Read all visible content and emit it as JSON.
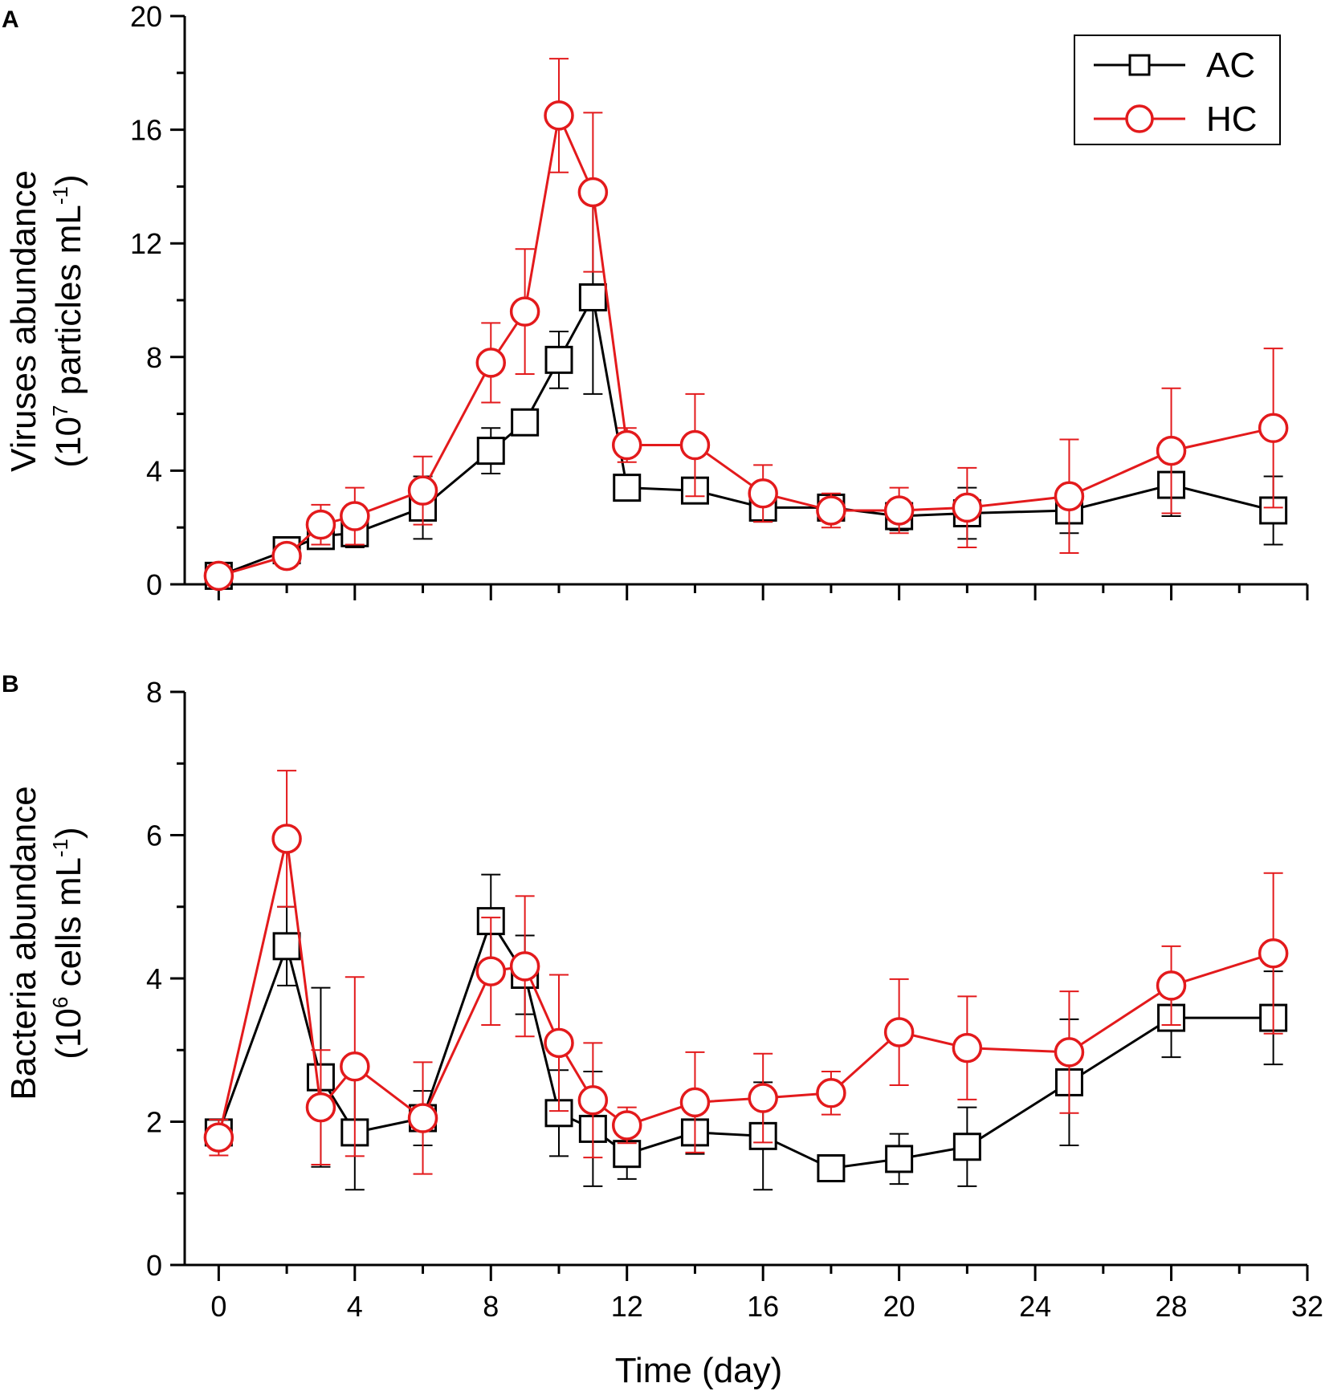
{
  "chart_data": [
    {
      "panel": "A",
      "type": "line",
      "ylabel_line1": "Viruses abundance",
      "ylabel_line2": "(10",
      "ylabel_sup": "7",
      "ylabel_mid": " particles mL",
      "ylabel_sup2": "-1",
      "ylabel_end": ")",
      "ylim": [
        0,
        20
      ],
      "yticks": [
        0,
        4,
        8,
        12,
        16,
        20
      ],
      "xlim": [
        -1,
        32
      ],
      "series": [
        {
          "name": "AC",
          "color": "#000000",
          "marker": "square",
          "x": [
            0,
            2,
            3,
            4,
            6,
            8,
            9,
            10,
            11,
            12,
            14,
            16,
            18,
            20,
            22,
            25,
            28,
            31
          ],
          "y": [
            0.3,
            1.2,
            1.7,
            1.8,
            2.7,
            4.7,
            5.7,
            7.9,
            10.1,
            3.4,
            3.3,
            2.7,
            2.7,
            2.4,
            2.5,
            2.6,
            3.5,
            2.6
          ],
          "err": [
            0.1,
            0.2,
            0.3,
            0.5,
            1.1,
            0.8,
            0.2,
            1.0,
            3.4,
            0.2,
            0.2,
            0.5,
            0.3,
            0.5,
            0.9,
            0.8,
            1.1,
            1.2
          ]
        },
        {
          "name": "HC",
          "color": "#e31a1c",
          "marker": "circle",
          "x": [
            0,
            2,
            3,
            4,
            6,
            8,
            9,
            10,
            11,
            12,
            14,
            16,
            18,
            20,
            22,
            25,
            28,
            31
          ],
          "y": [
            0.3,
            1.0,
            2.1,
            2.4,
            3.3,
            7.8,
            9.6,
            16.5,
            13.8,
            4.9,
            4.9,
            3.2,
            2.6,
            2.6,
            2.7,
            3.1,
            4.7,
            5.5
          ],
          "err": [
            0.1,
            0.2,
            0.7,
            1.0,
            1.2,
            1.4,
            2.2,
            2.0,
            2.8,
            0.6,
            1.8,
            1.0,
            0.6,
            0.8,
            1.4,
            2.0,
            2.2,
            2.8
          ]
        }
      ],
      "legend": [
        "AC",
        "HC"
      ]
    },
    {
      "panel": "B",
      "type": "line",
      "ylabel_line1": "Bacteria abundance",
      "ylabel_line2": "(10",
      "ylabel_sup": "6",
      "ylabel_mid": " cells mL",
      "ylabel_sup2": "-1",
      "ylabel_end": ")",
      "ylim": [
        0,
        8
      ],
      "yticks": [
        0,
        2,
        4,
        6,
        8
      ],
      "xlim": [
        -1,
        32
      ],
      "xticks": [
        0,
        4,
        8,
        12,
        16,
        20,
        24,
        28,
        32
      ],
      "xlabel": "Time (day)",
      "series": [
        {
          "name": "AC",
          "color": "#000000",
          "marker": "square",
          "x": [
            0,
            2,
            3,
            4,
            6,
            8,
            9,
            10,
            11,
            12,
            14,
            16,
            18,
            20,
            22,
            25,
            28,
            31
          ],
          "y": [
            1.85,
            4.45,
            2.62,
            1.85,
            2.05,
            4.8,
            4.05,
            2.12,
            1.9,
            1.55,
            1.85,
            1.8,
            1.35,
            1.48,
            1.65,
            2.55,
            3.45,
            3.45
          ],
          "err": [
            0.1,
            0.55,
            1.25,
            0.8,
            0.38,
            0.65,
            0.55,
            0.6,
            0.8,
            0.35,
            0.3,
            0.75,
            0.15,
            0.35,
            0.55,
            0.88,
            0.55,
            0.65
          ]
        },
        {
          "name": "HC",
          "color": "#e31a1c",
          "marker": "circle",
          "x": [
            0,
            2,
            3,
            4,
            6,
            8,
            9,
            10,
            11,
            12,
            14,
            16,
            18,
            20,
            22,
            25,
            28,
            31
          ],
          "y": [
            1.78,
            5.95,
            2.2,
            2.77,
            2.05,
            4.1,
            4.17,
            3.1,
            2.3,
            1.95,
            2.27,
            2.33,
            2.4,
            3.25,
            3.03,
            2.97,
            3.9,
            4.35
          ],
          "err": [
            0.25,
            0.95,
            0.8,
            1.25,
            0.78,
            0.75,
            0.98,
            0.95,
            0.8,
            0.25,
            0.7,
            0.62,
            0.3,
            0.74,
            0.72,
            0.85,
            0.55,
            1.12
          ]
        }
      ]
    }
  ]
}
